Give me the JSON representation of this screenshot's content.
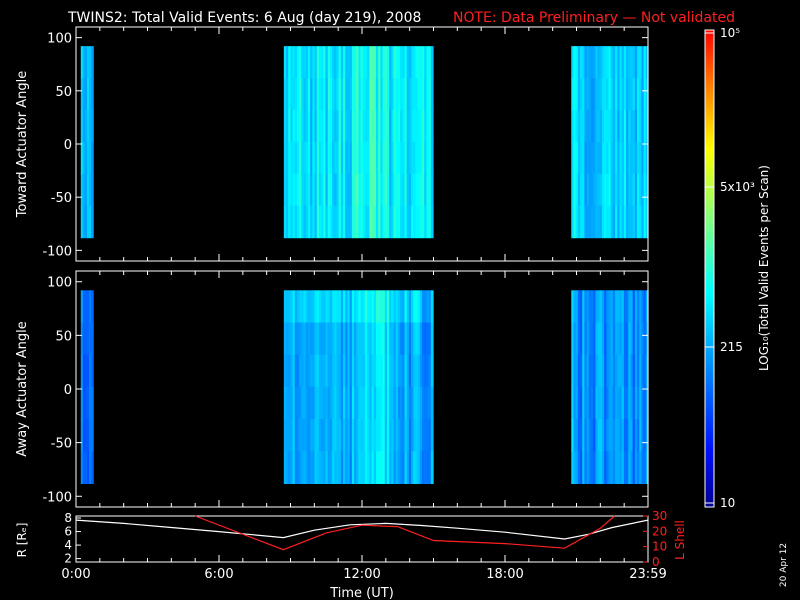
{
  "title": {
    "main": "TWINS2: Total Valid Events:  6 Aug (day 219), 2008",
    "note": "NOTE: Data Preliminary — Not validated"
  },
  "stamp": "20 Apr 12",
  "colors": {
    "note": "#ff2020",
    "background": "#000000",
    "axes": "#ffffff",
    "r_line": "#ffffff",
    "lshell_line": "#ff2020"
  },
  "chart_data": [
    {
      "type": "heatmap",
      "panel": "top",
      "ylabel": "Toward Actuator Angle",
      "ylim": [
        -110,
        110
      ],
      "yticks": [
        100,
        50,
        0,
        -50,
        -100
      ],
      "y_extent": [
        -88,
        92
      ],
      "xlim_hours": [
        0,
        24
      ],
      "blocks": [
        {
          "start_hour": 0.2,
          "end_hour": 0.72,
          "base": 0.34
        },
        {
          "start_hour": 8.72,
          "end_hour": 14.98,
          "base": 0.42
        },
        {
          "start_hour": 20.78,
          "end_hour": 24.0,
          "base": 0.38
        }
      ]
    },
    {
      "type": "heatmap",
      "panel": "middle",
      "ylabel": "Away Actuator Angle",
      "ylim": [
        -110,
        110
      ],
      "yticks": [
        100,
        50,
        0,
        -50,
        -100
      ],
      "y_extent": [
        -88,
        92
      ],
      "xlim_hours": [
        0,
        24
      ],
      "blocks": [
        {
          "start_hour": 0.2,
          "end_hour": 0.72,
          "base": 0.26
        },
        {
          "start_hour": 8.72,
          "end_hour": 14.98,
          "base": 0.33
        },
        {
          "start_hour": 20.78,
          "end_hour": 24.0,
          "base": 0.3
        }
      ]
    },
    {
      "type": "line",
      "panel": "bottom",
      "xlabel": "Time (UT)",
      "xticks": [
        "0:00",
        "6:00",
        "12:00",
        "18:00",
        "23:59"
      ],
      "ylabel_left": "R [Rₑ]",
      "ylabel_right": "L Shell",
      "yticks_left": [
        8,
        6,
        4,
        2
      ],
      "yticks_right": [
        30,
        20,
        10,
        0
      ],
      "ylim_left": [
        1.5,
        8.3
      ],
      "ylim_right": [
        0,
        30
      ],
      "series": [
        {
          "name": "R [Rₑ]",
          "axis": "left",
          "x_hours": [
            0,
            2,
            4,
            6,
            8.7,
            10,
            11.5,
            13,
            14.5,
            16,
            18,
            20.5,
            21.5,
            22.5,
            24
          ],
          "values": [
            7.7,
            7.2,
            6.6,
            6.0,
            5.1,
            6.2,
            7.0,
            7.2,
            6.9,
            6.5,
            5.9,
            4.9,
            5.6,
            6.6,
            7.7
          ]
        },
        {
          "name": "L Shell",
          "axis": "right",
          "x_hours": [
            5.0,
            8.7,
            10.5,
            12,
            13.5,
            15,
            18,
            20.5,
            22,
            22.6
          ],
          "values": [
            30,
            8,
            19,
            24,
            23,
            14,
            12,
            9,
            22,
            30
          ]
        }
      ]
    }
  ],
  "colorbar": {
    "label": "LOG₁₀(Total Valid Events per Scan)",
    "ticks": [
      "10⁵",
      "5x10³",
      "215",
      "10"
    ]
  }
}
